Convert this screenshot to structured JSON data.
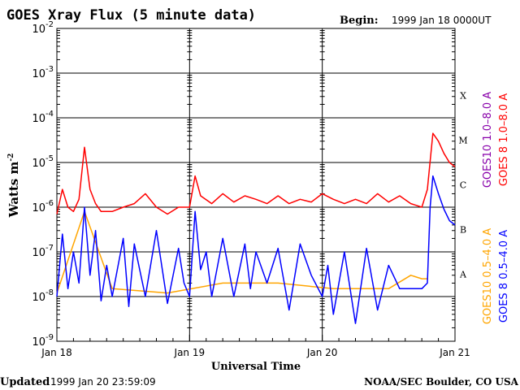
{
  "chart_data": {
    "type": "line",
    "title": "GOES Xray Flux (5 minute data)",
    "begin_label": "Begin:",
    "begin_value": "1999 Jan 18 0000UT",
    "ylabel": "Watts m",
    "ylabel_exp": "-2",
    "xlabel": "Universal Time",
    "y_scale": "log",
    "ylim": [
      1e-09,
      0.01
    ],
    "y_ticks": [
      {
        "base": "10",
        "exp": "-2",
        "value": 0.01
      },
      {
        "base": "10",
        "exp": "-3",
        "value": 0.001
      },
      {
        "base": "10",
        "exp": "-4",
        "value": 0.0001
      },
      {
        "base": "10",
        "exp": "-5",
        "value": 1e-05
      },
      {
        "base": "10",
        "exp": "-6",
        "value": 1e-06
      },
      {
        "base": "10",
        "exp": "-7",
        "value": 1e-07
      },
      {
        "base": "10",
        "exp": "-8",
        "value": 1e-08
      },
      {
        "base": "10",
        "exp": "-9",
        "value": 1e-09
      }
    ],
    "xlim": [
      0,
      72
    ],
    "x_ticks": [
      {
        "label": "Jan 18",
        "hours": 0
      },
      {
        "label": "Jan 19",
        "hours": 24
      },
      {
        "label": "Jan 20",
        "hours": 48
      },
      {
        "label": "Jan 21",
        "hours": 72
      }
    ],
    "flare_classes": [
      {
        "label": "X",
        "value": 0.0001
      },
      {
        "label": "M",
        "value": 1e-05
      },
      {
        "label": "C",
        "value": 1e-06
      },
      {
        "label": "B",
        "value": 1e-07
      },
      {
        "label": "A",
        "value": 1e-08
      }
    ],
    "grid": "horizontal at each decade",
    "legend": "right side, rotated",
    "series": [
      {
        "name": "GOES 8 1.0–8.0 A",
        "color": "#ff0000",
        "points": [
          [
            0,
            7e-07
          ],
          [
            1,
            2.5e-06
          ],
          [
            2,
            1e-06
          ],
          [
            3,
            8e-07
          ],
          [
            4,
            1.5e-06
          ],
          [
            5,
            2.2e-05
          ],
          [
            6,
            2.5e-06
          ],
          [
            7,
            1.2e-06
          ],
          [
            8,
            8e-07
          ],
          [
            10,
            8e-07
          ],
          [
            12,
            1e-06
          ],
          [
            14,
            1.2e-06
          ],
          [
            16,
            2e-06
          ],
          [
            18,
            1e-06
          ],
          [
            20,
            7e-07
          ],
          [
            22,
            1e-06
          ],
          [
            24,
            1e-06
          ],
          [
            25,
            5e-06
          ],
          [
            26,
            1.8e-06
          ],
          [
            28,
            1.2e-06
          ],
          [
            30,
            2e-06
          ],
          [
            32,
            1.3e-06
          ],
          [
            34,
            1.8e-06
          ],
          [
            36,
            1.5e-06
          ],
          [
            38,
            1.2e-06
          ],
          [
            40,
            1.8e-06
          ],
          [
            42,
            1.2e-06
          ],
          [
            44,
            1.5e-06
          ],
          [
            46,
            1.3e-06
          ],
          [
            48,
            2e-06
          ],
          [
            50,
            1.5e-06
          ],
          [
            52,
            1.2e-06
          ],
          [
            54,
            1.5e-06
          ],
          [
            56,
            1.2e-06
          ],
          [
            58,
            2e-06
          ],
          [
            60,
            1.3e-06
          ],
          [
            62,
            1.8e-06
          ],
          [
            64,
            1.2e-06
          ],
          [
            66,
            1e-06
          ],
          [
            67,
            2.5e-06
          ],
          [
            68,
            4.5e-05
          ],
          [
            69,
            3e-05
          ],
          [
            70,
            1.6e-05
          ],
          [
            71,
            1e-05
          ],
          [
            72,
            8e-06
          ]
        ]
      },
      {
        "name": "GOES10 1.0–8.0 A",
        "color": "#8800aa",
        "points": []
      },
      {
        "name": "GOES 8 0.5–4.0 A",
        "color": "#0000ff",
        "points": [
          [
            0,
            1e-08
          ],
          [
            1,
            2.5e-07
          ],
          [
            2,
            1.5e-08
          ],
          [
            3,
            1e-07
          ],
          [
            4,
            2e-08
          ],
          [
            5,
            1e-06
          ],
          [
            6,
            3e-08
          ],
          [
            7,
            3e-07
          ],
          [
            8,
            8e-09
          ],
          [
            9,
            5e-08
          ],
          [
            10,
            1e-08
          ],
          [
            12,
            2e-07
          ],
          [
            13,
            6e-09
          ],
          [
            14,
            1.5e-07
          ],
          [
            16,
            1e-08
          ],
          [
            18,
            3e-07
          ],
          [
            20,
            7e-09
          ],
          [
            22,
            1.2e-07
          ],
          [
            23,
            2e-08
          ],
          [
            24,
            1e-08
          ],
          [
            25,
            8e-07
          ],
          [
            26,
            4e-08
          ],
          [
            27,
            1e-07
          ],
          [
            28,
            1e-08
          ],
          [
            30,
            2e-07
          ],
          [
            32,
            1e-08
          ],
          [
            34,
            1.5e-07
          ],
          [
            35,
            1.5e-08
          ],
          [
            36,
            1e-07
          ],
          [
            38,
            2e-08
          ],
          [
            40,
            1.2e-07
          ],
          [
            42,
            5e-09
          ],
          [
            44,
            1.5e-07
          ],
          [
            46,
            3e-08
          ],
          [
            48,
            1e-08
          ],
          [
            49,
            5e-08
          ],
          [
            50,
            4e-09
          ],
          [
            52,
            1e-07
          ],
          [
            54,
            2.5e-09
          ],
          [
            56,
            1.2e-07
          ],
          [
            58,
            5e-09
          ],
          [
            60,
            5e-08
          ],
          [
            62,
            1.5e-08
          ],
          [
            64,
            1.5e-08
          ],
          [
            66,
            1.5e-08
          ],
          [
            67,
            2e-08
          ],
          [
            67.5,
            1e-06
          ],
          [
            68,
            5e-06
          ],
          [
            69,
            2e-06
          ],
          [
            70,
            9e-07
          ],
          [
            71,
            5e-07
          ],
          [
            72,
            4e-07
          ]
        ]
      },
      {
        "name": "GOES10 0.5–4.0 A",
        "color": "#ffa500",
        "points": [
          [
            0,
            1.2e-08
          ],
          [
            5,
            8e-07
          ],
          [
            10,
            1.5e-08
          ],
          [
            20,
            1.2e-08
          ],
          [
            30,
            2e-08
          ],
          [
            40,
            2e-08
          ],
          [
            50,
            1.5e-08
          ],
          [
            60,
            1.5e-08
          ],
          [
            64,
            3e-08
          ],
          [
            66,
            2.5e-08
          ],
          [
            67,
            2.5e-08
          ]
        ]
      }
    ]
  },
  "footer": {
    "updated_label": "Updated",
    "updated_value": "1999 Jan 20 23:59:09",
    "credit": "NOAA/SEC Boulder, CO USA"
  }
}
